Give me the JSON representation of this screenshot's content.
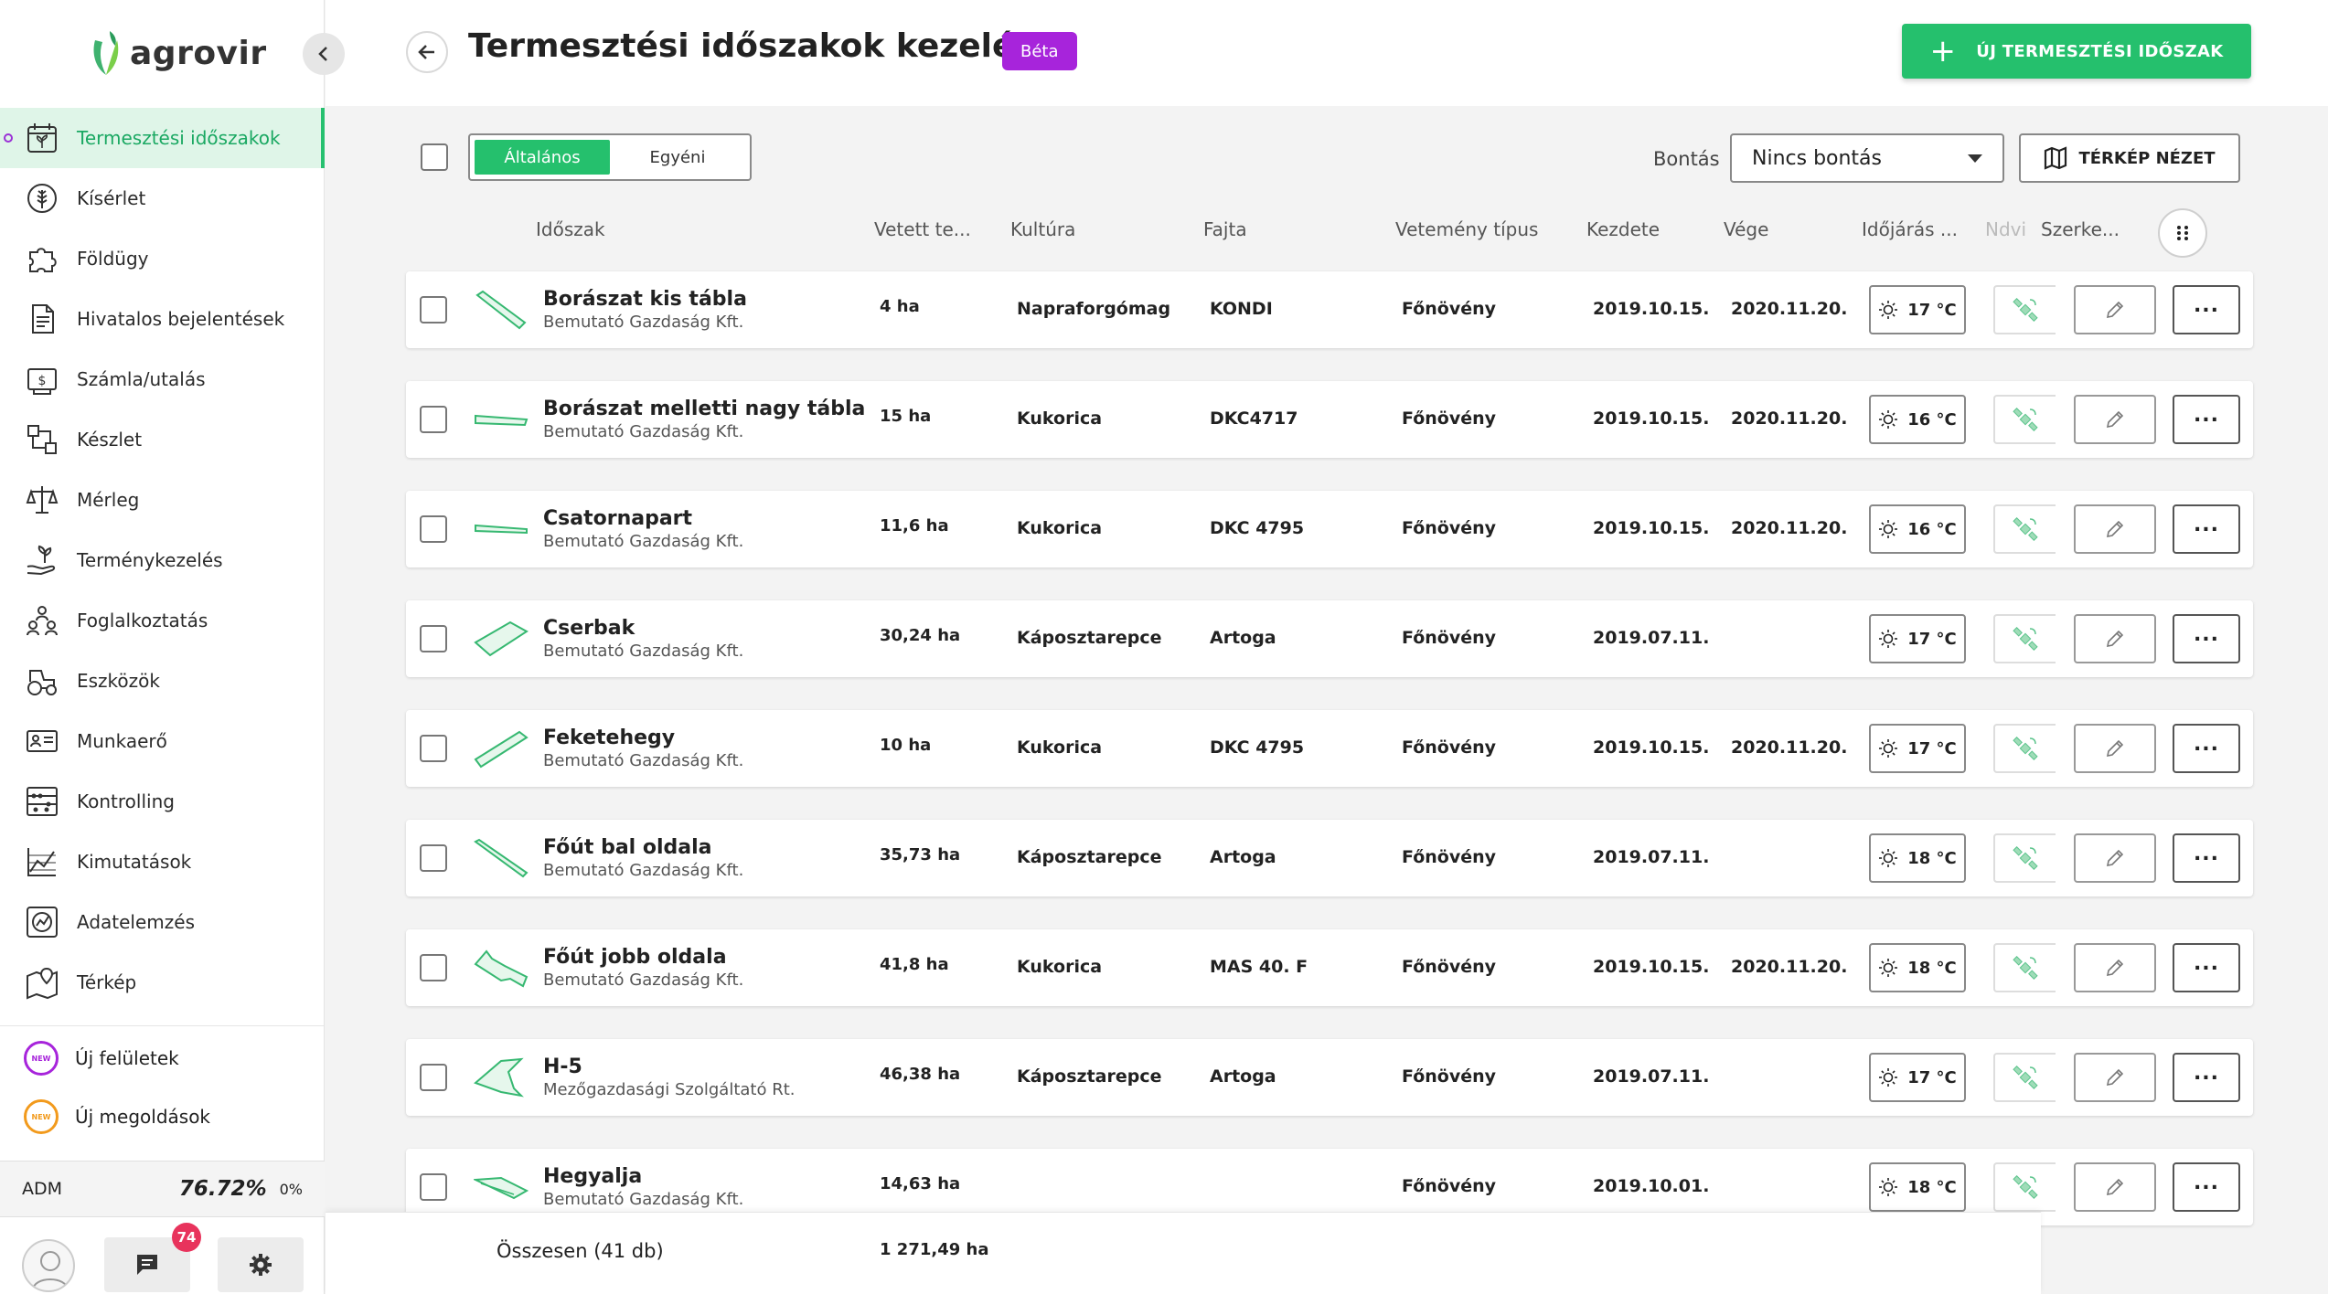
{
  "app": {
    "logo_text": "agrovir"
  },
  "sidebar": {
    "items": [
      {
        "label": "Termesztési időszakok",
        "icon": "calendar-plant-icon",
        "active": true
      },
      {
        "label": "Kísérlet",
        "icon": "wheat-icon"
      },
      {
        "label": "Földügy",
        "icon": "puzzle-icon"
      },
      {
        "label": "Hivatalos bejelentések",
        "icon": "document-icon"
      },
      {
        "label": "Számla/utalás",
        "icon": "invoice-icon"
      },
      {
        "label": "Készlet",
        "icon": "stock-icon"
      },
      {
        "label": "Mérleg",
        "icon": "scale-icon"
      },
      {
        "label": "Terménykezelés",
        "icon": "hand-plant-icon"
      },
      {
        "label": "Foglalkoztatás",
        "icon": "people-icon"
      },
      {
        "label": "Eszközök",
        "icon": "tractor-icon"
      },
      {
        "label": "Munkaerő",
        "icon": "id-card-icon"
      },
      {
        "label": "Kontrolling",
        "icon": "abacus-icon"
      },
      {
        "label": "Kimutatások",
        "icon": "chart-icon"
      },
      {
        "label": "Adatelemzés",
        "icon": "analytics-icon"
      },
      {
        "label": "Térkép",
        "icon": "map-icon"
      }
    ],
    "new_items": [
      {
        "label": "Új felületek",
        "badge": "NEW",
        "color": "#a724db"
      },
      {
        "label": "Új megoldások",
        "badge": "NEW",
        "color": "#f29a1c"
      }
    ],
    "adm": {
      "label": "ADM",
      "percent": "76.72%",
      "percent2": "0%"
    },
    "messages_badge": "74"
  },
  "header": {
    "title": "Termesztési időszakok kezelése",
    "badge": "Béta",
    "new_button": "ÚJ TERMESZTÉSI IDŐSZAK"
  },
  "toolbar": {
    "segments": [
      "Általános",
      "Egyéni"
    ],
    "bontas_label": "Bontás",
    "bontas_value": "Nincs bontás",
    "map_button": "TÉRKÉP NÉZET"
  },
  "columns": [
    "Időszak",
    "Vetett te...",
    "Kultúra",
    "Fajta",
    "Vetemény típus",
    "Kezdete",
    "Vége",
    "Időjárás ...",
    "Ndvi",
    "Szerke..."
  ],
  "rows": [
    {
      "name": "Borászat kis tábla",
      "company": "Bemutató Gazdaság Kft.",
      "area": "4 ha",
      "culture": "Napraforgómag",
      "variety": "KONDI",
      "type": "Főnövény",
      "start": "2019.10.15.",
      "end": "2020.11.20.",
      "temp": "17 °C"
    },
    {
      "name": "Borászat melletti nagy tábla",
      "company": "Bemutató Gazdaság Kft.",
      "area": "15 ha",
      "culture": "Kukorica",
      "variety": "DKC4717",
      "type": "Főnövény",
      "start": "2019.10.15.",
      "end": "2020.11.20.",
      "temp": "16 °C"
    },
    {
      "name": "Csatornapart",
      "company": "Bemutató Gazdaság Kft.",
      "area": "11,6 ha",
      "culture": "Kukorica",
      "variety": "DKC 4795",
      "type": "Főnövény",
      "start": "2019.10.15.",
      "end": "2020.11.20.",
      "temp": "16 °C"
    },
    {
      "name": "Cserbak",
      "company": "Bemutató Gazdaság Kft.",
      "area": "30,24 ha",
      "culture": "Káposztarepce",
      "variety": "Artoga",
      "type": "Főnövény",
      "start": "2019.07.11.",
      "end": "",
      "temp": "17 °C"
    },
    {
      "name": "Feketehegy",
      "company": "Bemutató Gazdaság Kft.",
      "area": "10 ha",
      "culture": "Kukorica",
      "variety": "DKC 4795",
      "type": "Főnövény",
      "start": "2019.10.15.",
      "end": "2020.11.20.",
      "temp": "17 °C"
    },
    {
      "name": "Főút bal oldala",
      "company": "Bemutató Gazdaság Kft.",
      "area": "35,73 ha",
      "culture": "Káposztarepce",
      "variety": "Artoga",
      "type": "Főnövény",
      "start": "2019.07.11.",
      "end": "",
      "temp": "18 °C"
    },
    {
      "name": "Főút jobb oldala",
      "company": "Bemutató Gazdaság Kft.",
      "area": "41,8 ha",
      "culture": "Kukorica",
      "variety": "MAS 40. F",
      "type": "Főnövény",
      "start": "2019.10.15.",
      "end": "2020.11.20.",
      "temp": "18 °C"
    },
    {
      "name": "H-5",
      "company": "Mezőgazdasági Szolgáltató Rt.",
      "area": "46,38 ha",
      "culture": "Káposztarepce",
      "variety": "Artoga",
      "type": "Főnövény",
      "start": "2019.07.11.",
      "end": "",
      "temp": "17 °C"
    },
    {
      "name": "Hegyalja",
      "company": "Bemutató Gazdaság Kft.",
      "area": "14,63 ha",
      "culture": "",
      "variety": "",
      "type": "Főnövény",
      "start": "2019.10.01.",
      "end": "",
      "temp": "18 °C"
    }
  ],
  "footer": {
    "total_label": "Összesen (41 db)",
    "total_area": "1 271,49 ha"
  },
  "colors": {
    "accent": "#25c06d",
    "beta": "#a724db",
    "active_bg": "#dff5e8",
    "badge_red": "#e8335c"
  }
}
